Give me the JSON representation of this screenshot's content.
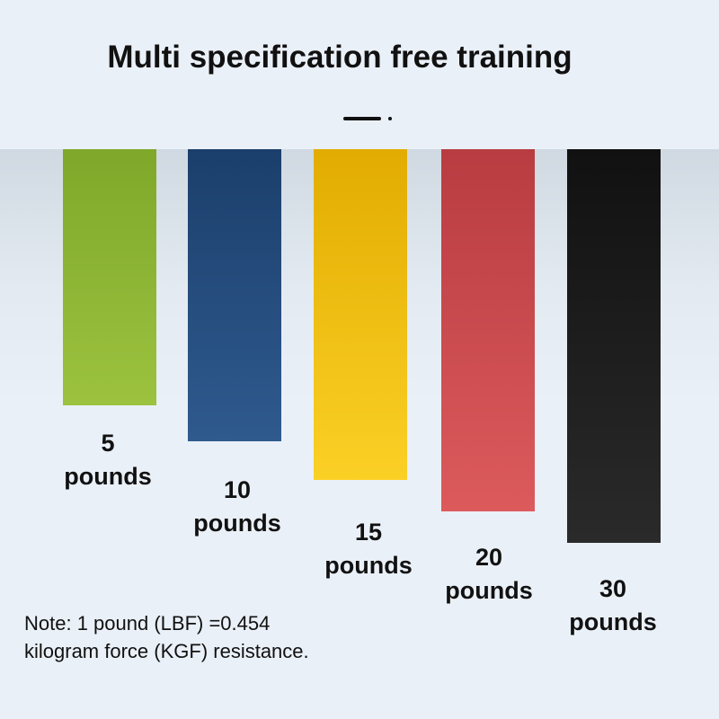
{
  "title": "Multi specification free training",
  "bands": [
    {
      "value": "5",
      "unit": "pounds",
      "color_top": "#7fa82a",
      "color_bottom": "#9cc23f"
    },
    {
      "value": "10",
      "unit": "pounds",
      "color_top": "#1b3f6c",
      "color_bottom": "#2f5a8e"
    },
    {
      "value": "15",
      "unit": "pounds",
      "color_top": "#e2ac02",
      "color_bottom": "#fbd025"
    },
    {
      "value": "20",
      "unit": "pounds",
      "color_top": "#b83c41",
      "color_bottom": "#dc5a5c"
    },
    {
      "value": "30",
      "unit": "pounds",
      "color_top": "#111111",
      "color_bottom": "#2a2a2a"
    }
  ],
  "note": {
    "line1": "Note: 1 pound (LBF) =0.454",
    "line2": "kilogram force (KGF) resistance."
  }
}
